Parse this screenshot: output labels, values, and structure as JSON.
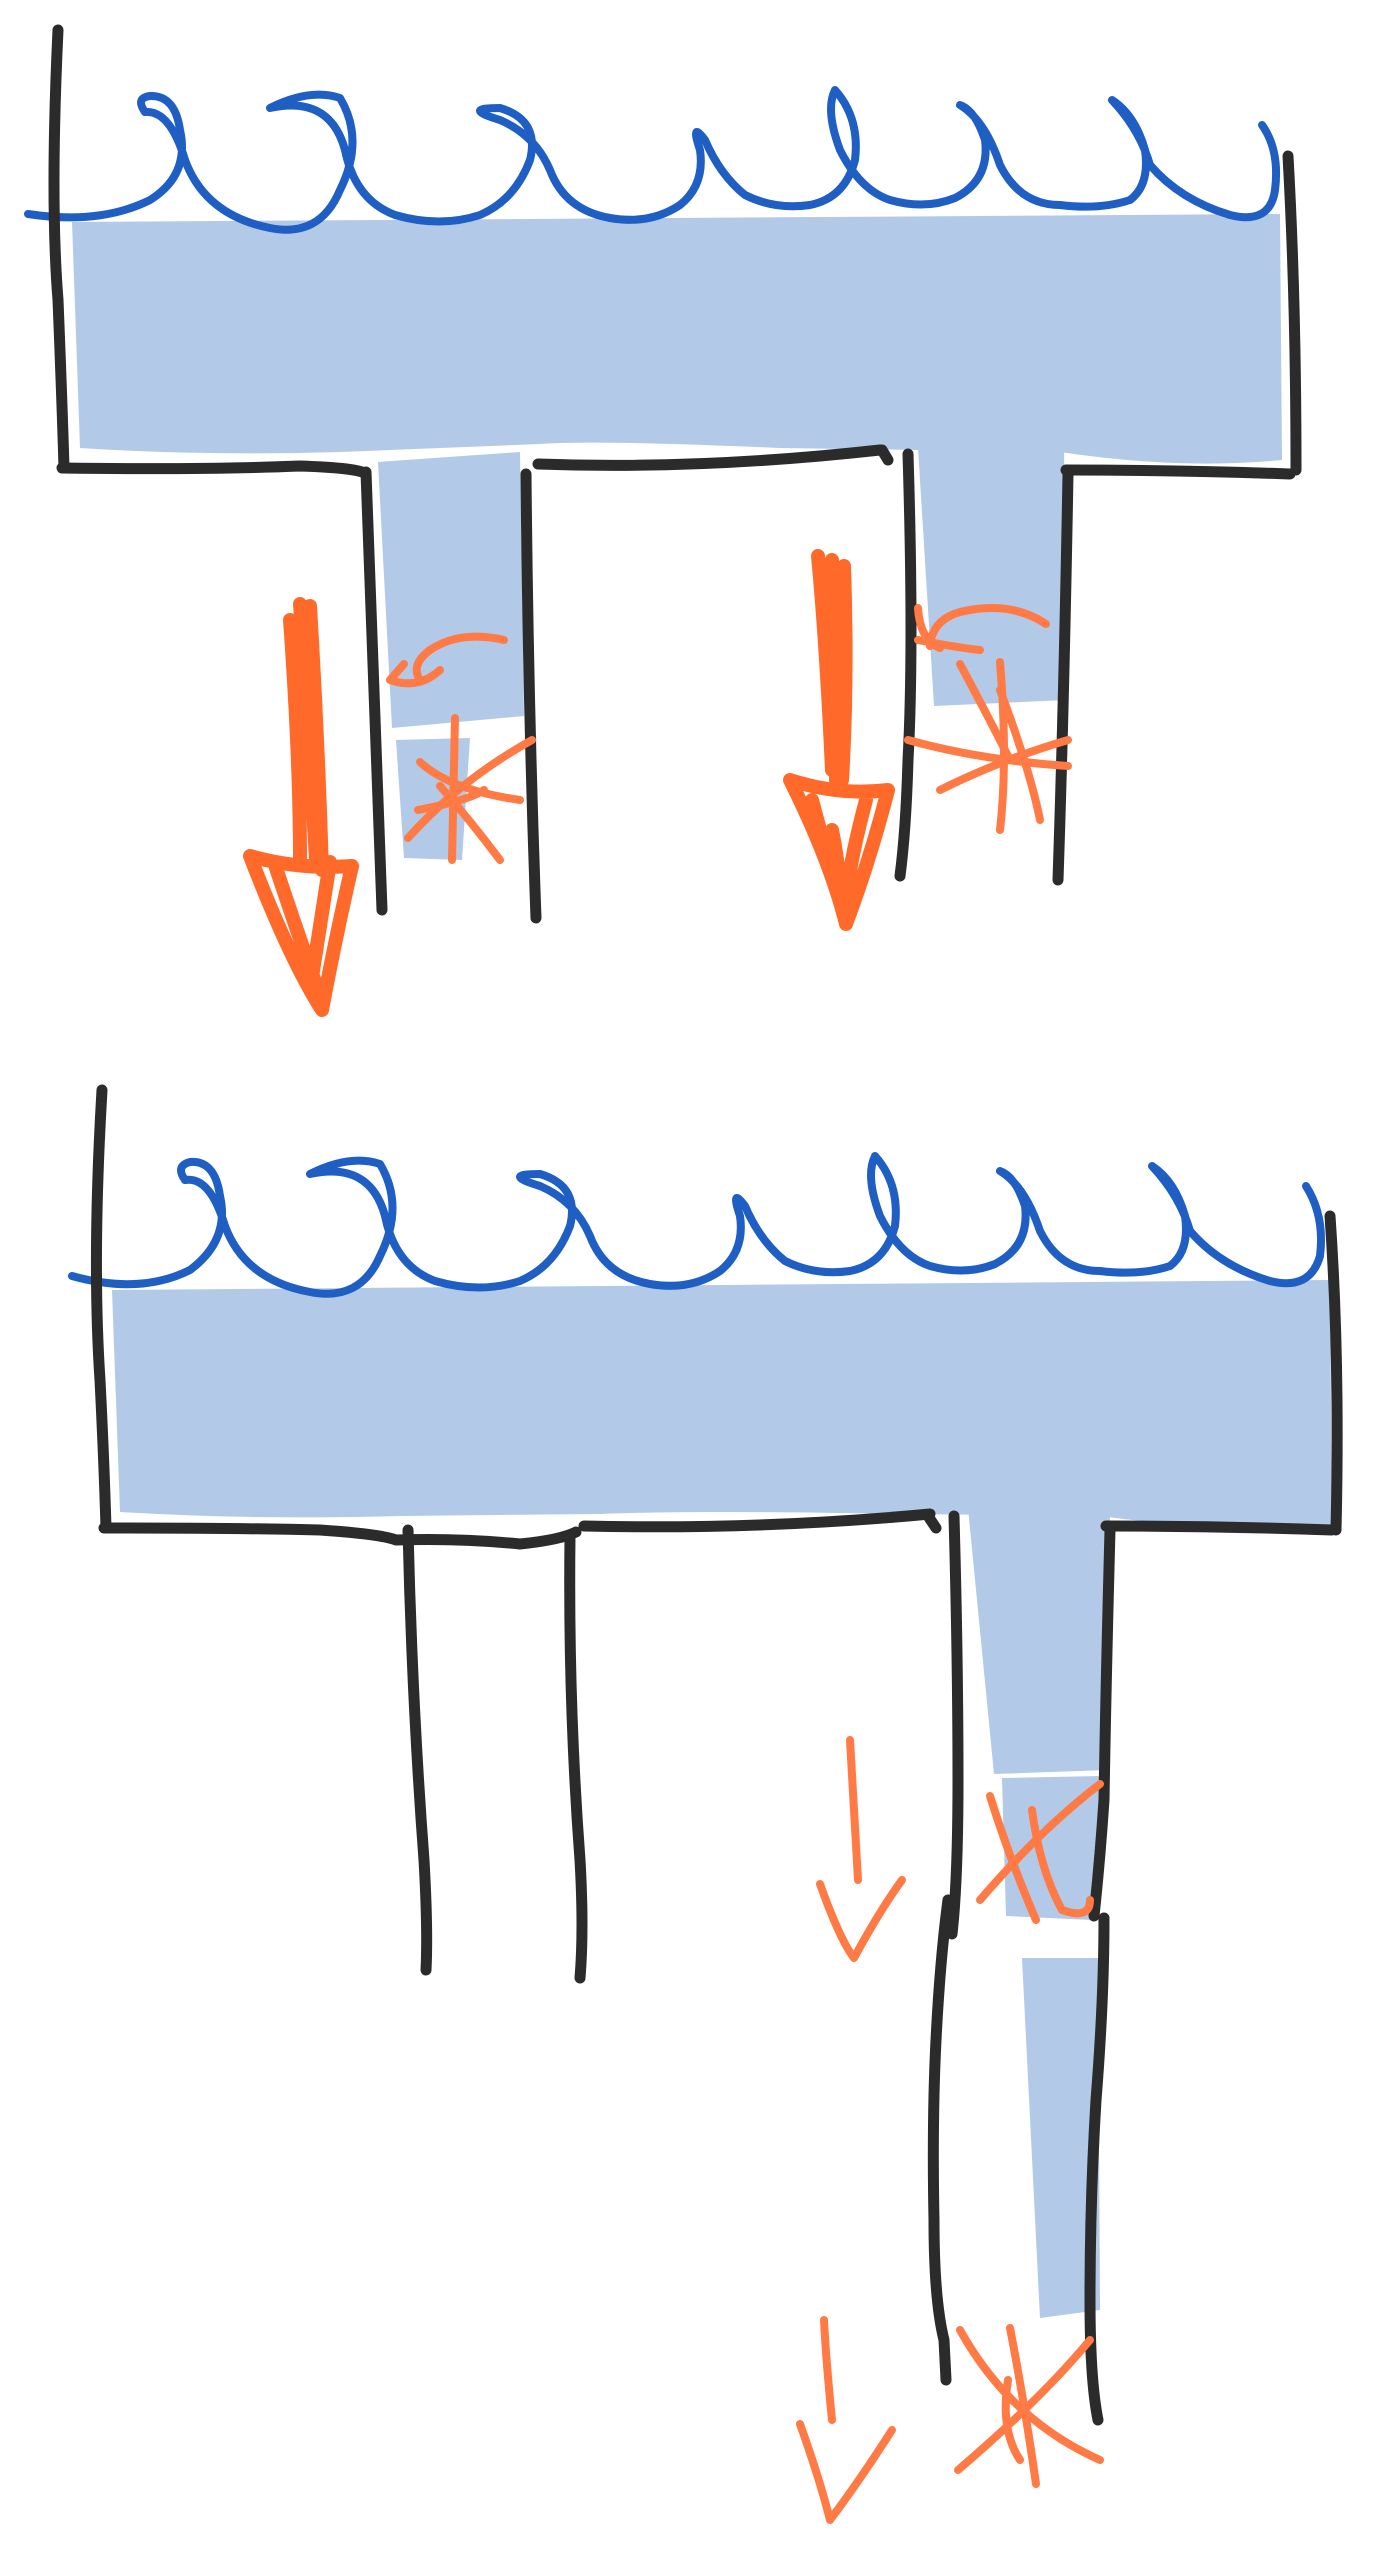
{
  "colors": {
    "water": "#b3c9e8",
    "ripple": "#1f5ec2",
    "pipe_outline": "#2b2b2b",
    "force_arrow_strong": "#ff6a2b",
    "force_arrow_light": "#ff7a45",
    "background": "#ffffff"
  },
  "scenes": [
    {
      "label": "",
      "tank": {
        "filled": true,
        "ripples": 8
      },
      "outlets": [
        {
          "filled": true,
          "flow_arrow": "large",
          "swirl_arrow": true,
          "splash_mark": true
        },
        {
          "filled": true,
          "flow_arrow": "large",
          "swirl_arrow": true,
          "splash_mark": true
        }
      ]
    },
    {
      "label": "",
      "tank": {
        "filled": true,
        "ripples": 8
      },
      "outlets": [
        {
          "filled": false,
          "flow_arrow": "none",
          "swirl_arrow": false,
          "splash_mark": false
        },
        {
          "filled": true,
          "segments": 2,
          "flow_arrow": "small",
          "splash_mark": true
        }
      ]
    }
  ],
  "icons": [
    "down-arrow-icon",
    "curved-arrow-icon",
    "asterisk-splash-icon",
    "wave-ripple-icon"
  ]
}
